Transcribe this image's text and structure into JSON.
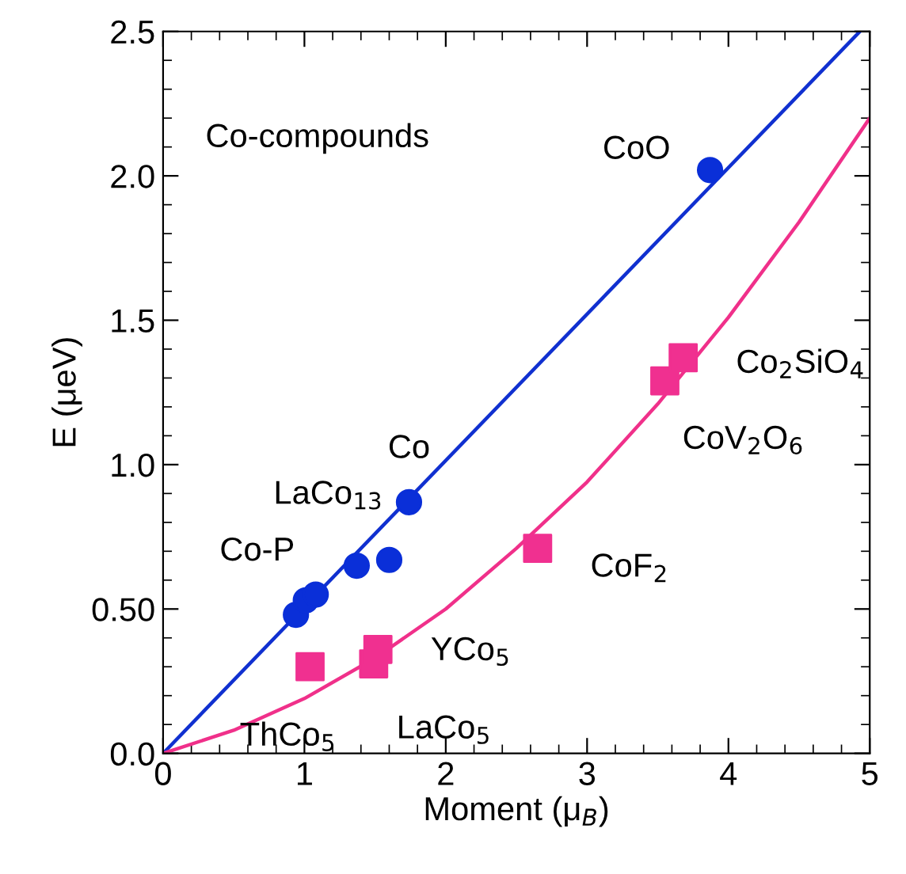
{
  "chart_data": {
    "type": "scatter",
    "xlabel": "Moment (μ$_{B}$)",
    "ylabel": "E (μeV)",
    "xlim": [
      0,
      5
    ],
    "ylim": [
      0,
      2.5
    ],
    "xticks": [
      0,
      1,
      2,
      3,
      4,
      5
    ],
    "yticks": [
      {
        "value": 0,
        "label": "0.0"
      },
      {
        "value": 0.5,
        "label": "0.50"
      },
      {
        "value": 1,
        "label": "1.0"
      },
      {
        "value": 1.5,
        "label": "1.5"
      },
      {
        "value": 2,
        "label": "2.0"
      },
      {
        "value": 2.5,
        "label": "2.5"
      }
    ],
    "grid": false,
    "legend": false,
    "series": [
      {
        "type": "line",
        "color": "#1030d0",
        "marker": "none",
        "line_style": "solid",
        "x": [
          0,
          4.93
        ],
        "values": [
          0,
          2.5
        ]
      },
      {
        "type": "line",
        "color": "#f0308a",
        "marker": "none",
        "line_style": "solid",
        "x": [
          0,
          0.5,
          1,
          1.5,
          2,
          2.5,
          3,
          3.5,
          4,
          4.5,
          5
        ],
        "values": [
          0,
          0.08,
          0.19,
          0.33,
          0.5,
          0.71,
          0.94,
          1.21,
          1.51,
          1.84,
          2.2
        ]
      },
      {
        "color": "#0a2fd8",
        "marker": "circle",
        "x": [
          0.94,
          1.01,
          1.08,
          1.37,
          1.6,
          1.74,
          3.87
        ],
        "values": [
          0.48,
          0.53,
          0.55,
          0.65,
          0.67,
          0.87,
          2.02
        ]
      },
      {
        "color": "#f03090",
        "marker": "square",
        "x": [
          1.04,
          1.49,
          1.52,
          2.65,
          3.55,
          3.68
        ],
        "values": [
          0.3,
          0.31,
          0.36,
          0.71,
          1.29,
          1.37
        ]
      }
    ],
    "annotations": [
      "Co-compounds",
      {
        "text": "CoO",
        "x": 3.87,
        "y": 2.02
      },
      {
        "text": "Co",
        "x": 1.74,
        "y": 0.87
      },
      {
        "text": "LaCo$_{13}$",
        "x": 1.37,
        "y": 0.65
      },
      {
        "text": "Co-P",
        "x": 1.01,
        "y": 0.53
      },
      {
        "text": "ThCo$_{5}$",
        "x": 1.04,
        "y": 0.3
      },
      {
        "text": "LaCo$_{5}$",
        "x": 1.49,
        "y": 0.31
      },
      {
        "text": "YCo$_{5}$",
        "x": 1.52,
        "y": 0.36
      },
      {
        "text": "CoF$_{2}$",
        "x": 2.65,
        "y": 0.71
      },
      {
        "text": "Co$_{2}$SiO$_{4}$",
        "x": 3.68,
        "y": 1.37
      },
      {
        "text": "CoV$_{2}$O$_{6}$",
        "x": 3.55,
        "y": 1.29
      }
    ]
  }
}
